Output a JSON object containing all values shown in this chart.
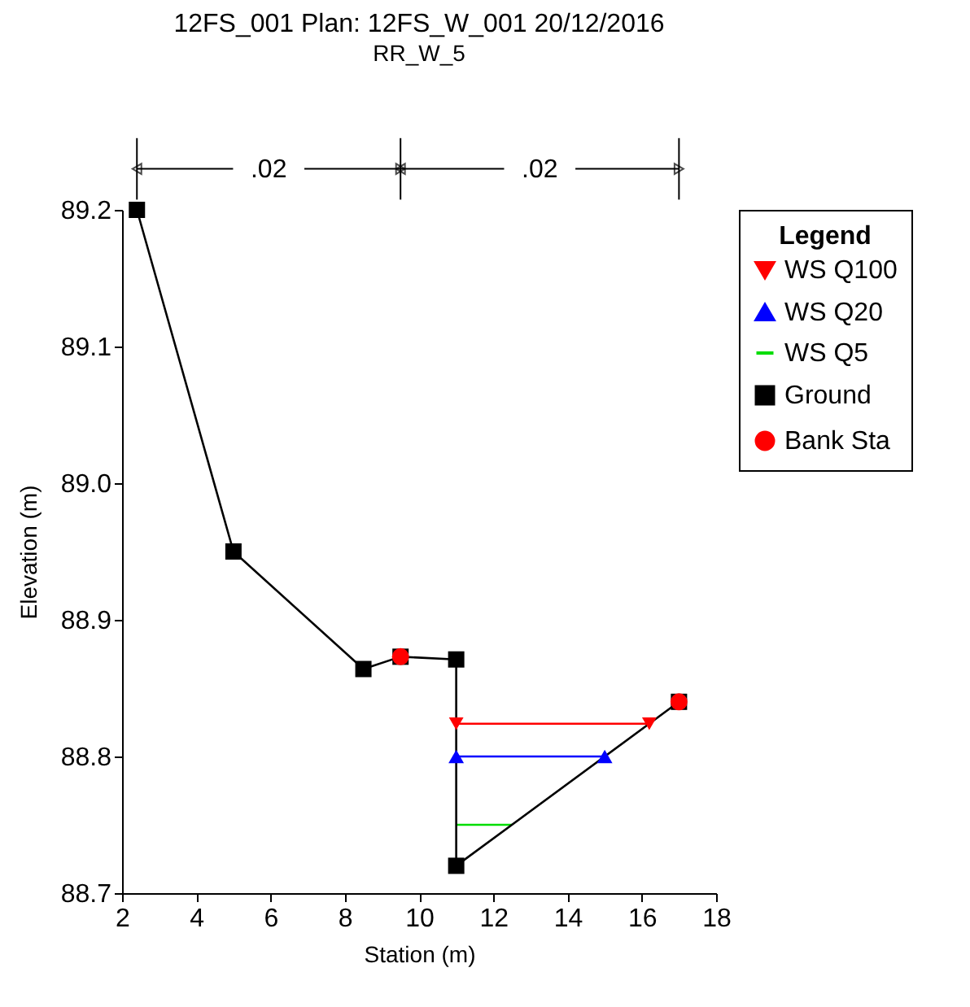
{
  "chart_data": {
    "type": "line",
    "title": "12FS_001    Plan: 12FS_W_001    20/12/2016",
    "subtitle": "RR_W_5",
    "xlabel": "Station (m)",
    "ylabel": "Elevation (m)",
    "legend_title": "Legend",
    "legend": "right",
    "grid": false,
    "xlim": [
      2,
      18
    ],
    "xticks": [
      2,
      4,
      6,
      8,
      10,
      12,
      14,
      16,
      18
    ],
    "ylim": [
      88.7,
      89.2
    ],
    "yticks": [
      {
        "value": 88.7,
        "label": "88.7"
      },
      {
        "value": 88.8,
        "label": "88.8"
      },
      {
        "value": 88.9,
        "label": "88.9"
      },
      {
        "value": 89,
        "label": "89.0"
      },
      {
        "value": 89.1,
        "label": "89.1"
      },
      {
        "value": 89.2,
        "label": "89.2"
      }
    ],
    "annotations": [
      ".02",
      ".02"
    ],
    "series": [
      {
        "name": "WS Q100",
        "type": "line",
        "color": "#ff0000",
        "marker": "triangle-down",
        "x": [
          11,
          16.2
        ],
        "values": [
          88.824,
          88.824
        ]
      },
      {
        "name": "WS Q20",
        "type": "line",
        "color": "#0000ff",
        "marker": "triangle",
        "x": [
          11,
          15
        ],
        "values": [
          88.8,
          88.8
        ]
      },
      {
        "name": "WS Q5",
        "type": "line",
        "color": "#00dd00",
        "marker": "none",
        "x": [
          11,
          12.5
        ],
        "values": [
          88.75,
          88.75
        ]
      },
      {
        "name": "Ground",
        "type": "line",
        "color": "#000000",
        "marker": "square",
        "x": [
          2.4,
          5,
          8.5,
          9.5,
          11,
          11,
          17
        ],
        "values": [
          89.2,
          88.95,
          88.864,
          88.873,
          88.871,
          88.72,
          88.84
        ]
      },
      {
        "name": "Bank Sta",
        "type": "scatter",
        "color": "#ff0000",
        "marker": "circle",
        "x": [
          9.5,
          17
        ],
        "values": [
          88.873,
          88.84
        ]
      }
    ]
  }
}
